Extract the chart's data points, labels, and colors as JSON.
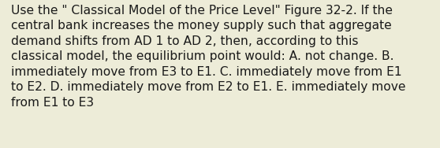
{
  "text": "Use the \" Classical Model of the Price Level\" Figure 32-2. If the\ncentral bank increases the money supply such that aggregate\ndemand shifts from AD 1 to AD 2, then, according to this\nclassical model, the equilibrium point would: A. not change. B.\nimmediately move from E3 to E1. C. immediately move from E1\nto E2. D. immediately move from E2 to E1. E. immediately move\nfrom E1 to E3",
  "background_color": "#edecd8",
  "text_color": "#1a1a1a",
  "font_size": 11.2,
  "fig_width": 5.58,
  "fig_height": 1.88,
  "dpi": 100
}
